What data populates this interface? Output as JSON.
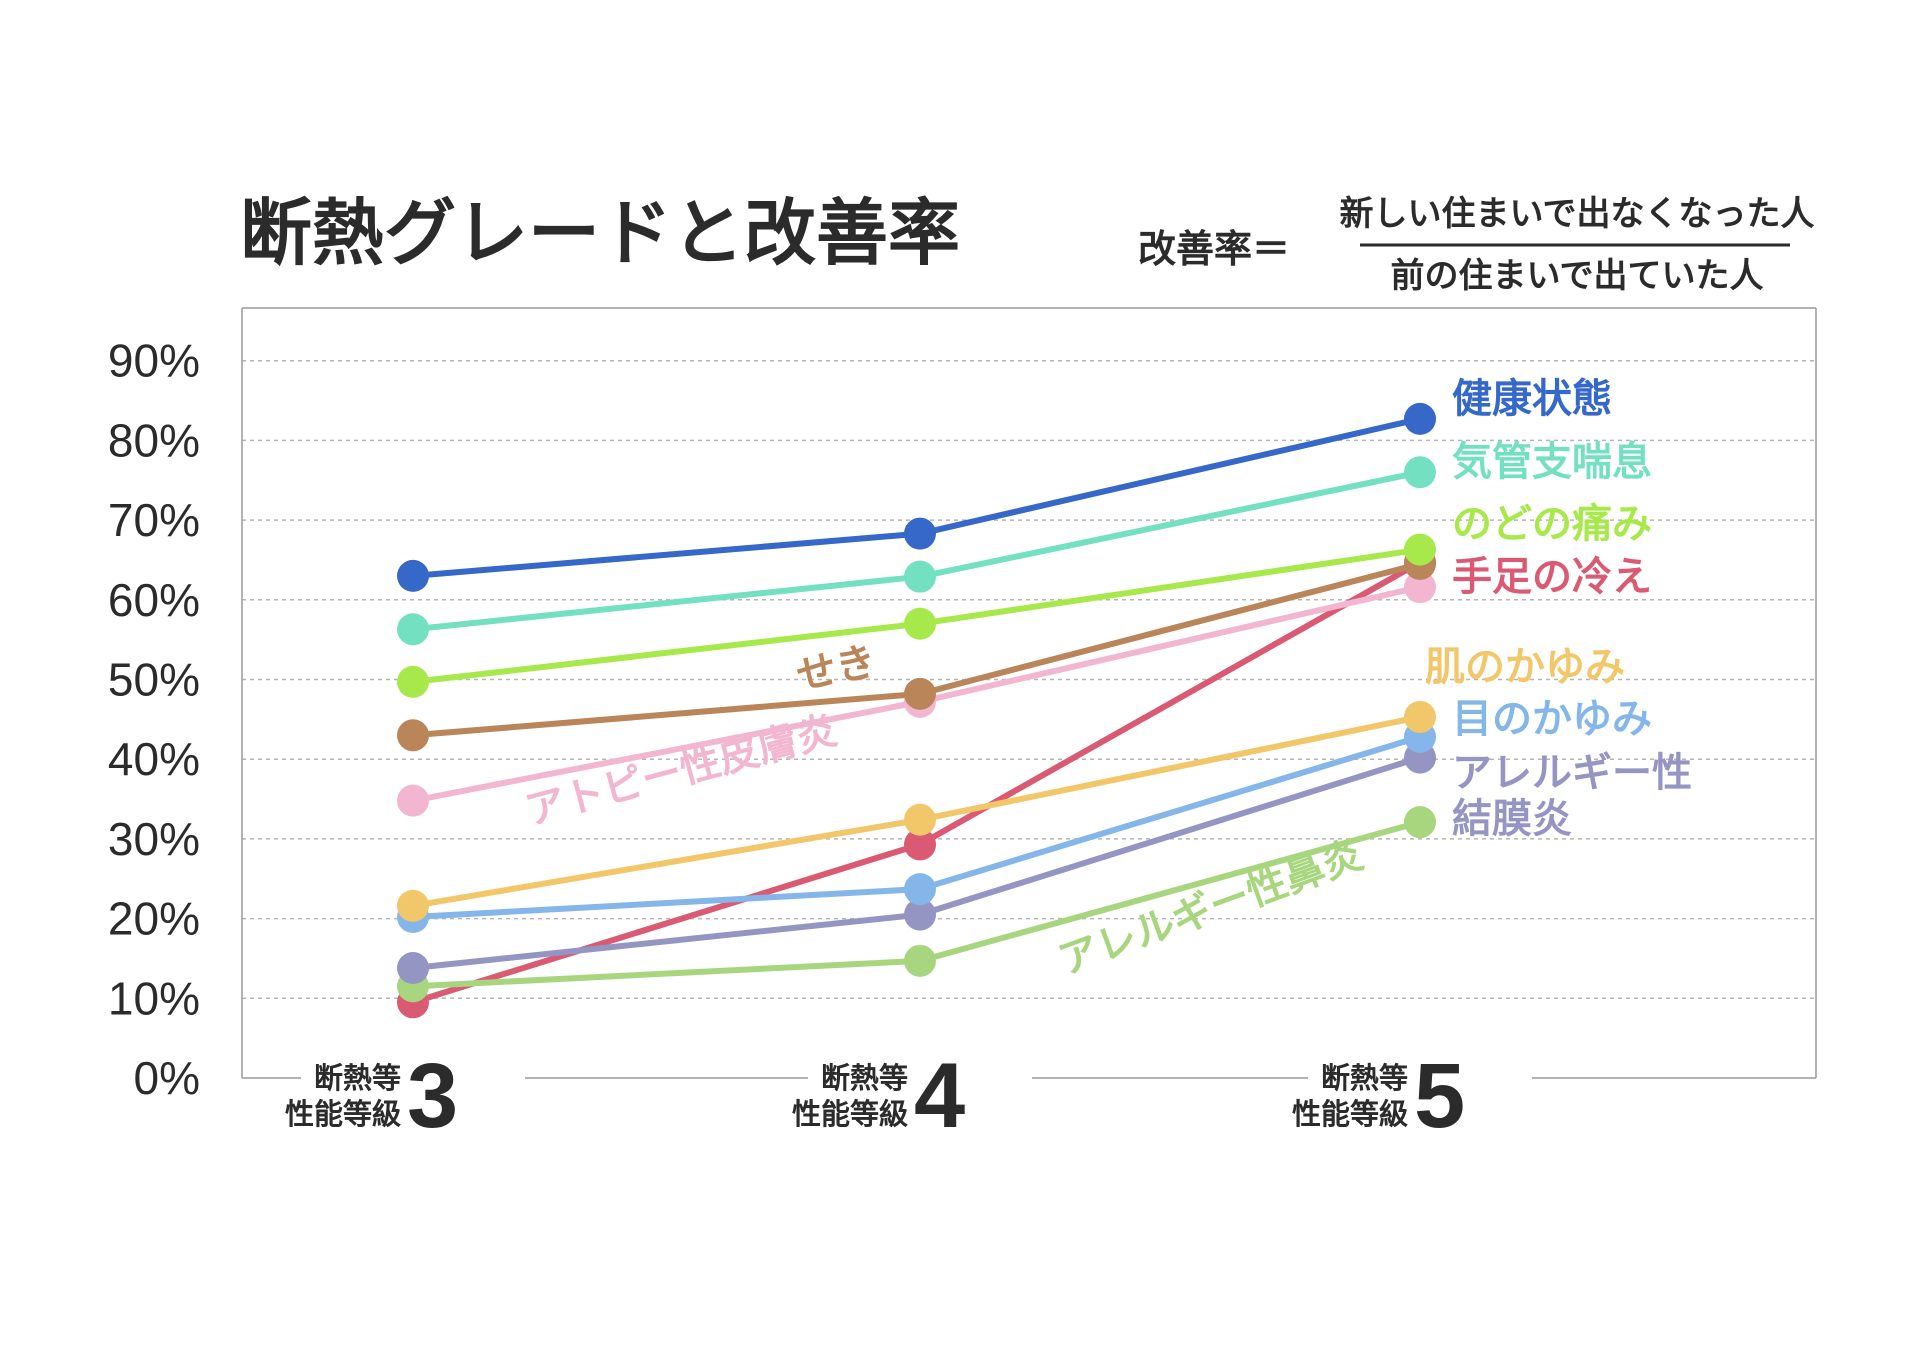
{
  "colors": {
    "text": "#2b2b2b",
    "grid": "#b5b5b5",
    "frame": "#9a9a9a"
  },
  "chart_data": {
    "type": "line",
    "title": "断熱グレードと改善率",
    "formula": {
      "lhs": "改善率＝",
      "numerator": "新しい住まいで出なくなった人",
      "denominator": "前の住まいで出ていた人"
    },
    "ylim": [
      0,
      90
    ],
    "yticks": [
      "0%",
      "10%",
      "20%",
      "30%",
      "40%",
      "50%",
      "60%",
      "70%",
      "80%",
      "90%"
    ],
    "grid": true,
    "categories": [
      {
        "line1": "断熱等",
        "line2": "性能等級",
        "num": "3"
      },
      {
        "line1": "断熱等",
        "line2": "性能等級",
        "num": "4"
      },
      {
        "line1": "断熱等",
        "line2": "性能等級",
        "num": "5"
      }
    ],
    "series": [
      {
        "name": "健康状態",
        "color": "#3568c8",
        "values": [
          63,
          68.3,
          82.7
        ]
      },
      {
        "name": "気管支喘息",
        "color": "#74e0c2",
        "values": [
          56.3,
          62.9,
          76.0
        ]
      },
      {
        "name": "のどの痛み",
        "color": "#a7e84a",
        "values": [
          49.7,
          57.0,
          66.3
        ]
      },
      {
        "name": "せき",
        "color": "#b98559",
        "values": [
          43.0,
          48.2,
          64.5
        ]
      },
      {
        "name": "アトピー性皮膚炎",
        "color": "#f2b6d0",
        "values": [
          34.8,
          47.2,
          61.6
        ]
      },
      {
        "name": "肌のかゆみ",
        "color": "#f2c76a",
        "values": [
          21.6,
          32.4,
          45.3
        ]
      },
      {
        "name": "目のかゆみ",
        "color": "#85b6ea",
        "values": [
          20.2,
          23.7,
          42.8
        ]
      },
      {
        "name": "アレルギー性結膜炎",
        "color": "#9495c3",
        "values": [
          13.8,
          20.5,
          40.2
        ]
      },
      {
        "name": "アレルギー性鼻炎",
        "color": "#a8d67e",
        "values": [
          11.5,
          14.7,
          32.1
        ]
      },
      {
        "name": "手足の冷え",
        "color": "#d95a72",
        "values": [
          9.5,
          29.3,
          64.7
        ]
      }
    ],
    "labels": {
      "health": "健康状態",
      "bronchial": "気管支喘息",
      "throat": "のどの痛み",
      "cold": "手足の冷え",
      "cough": "せき",
      "atopy": "アトピー性皮膚炎",
      "skin": "肌のかゆみ",
      "eye": "目のかゆみ",
      "conj1": "アレルギー性",
      "conj2": "結膜炎",
      "rhinitis": "アレルギー性鼻炎"
    }
  }
}
